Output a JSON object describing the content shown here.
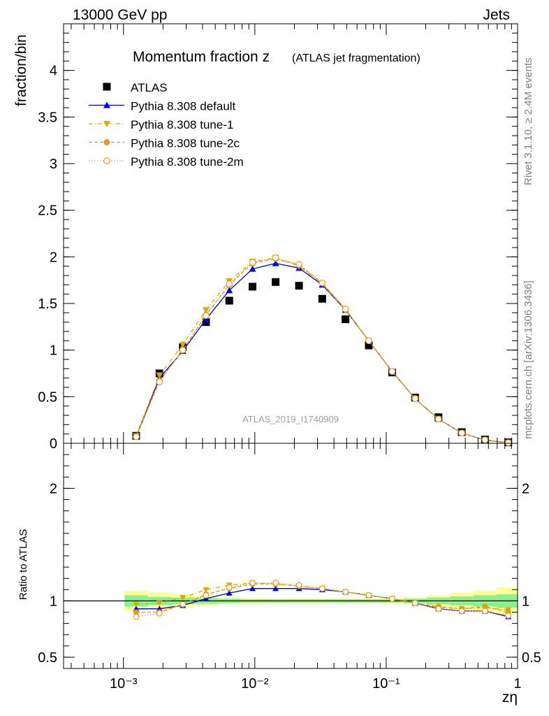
{
  "header": {
    "left": "13000 GeV pp",
    "right": "Jets"
  },
  "side_labels": {
    "rivet": "Rivet 3.1.10, ≥ 2.4M events",
    "mcplots": "mcplots.cern.ch [arXiv:1306.3436]"
  },
  "chart_data": [
    {
      "type": "scatter",
      "title": "Momentum fraction z",
      "title_suffix": "(ATLAS jet fragmentation)",
      "ylabel": "fraction/bin",
      "analysis_id": "ATLAS_2019_I1740909",
      "xscale": "log",
      "xlim": [
        0.00035,
        1.0
      ],
      "ylim": [
        0,
        4.5
      ],
      "yticks": [
        0,
        0.5,
        1,
        1.5,
        2,
        2.5,
        3,
        3.5,
        4
      ],
      "ytick_labels": [
        "0",
        "0.5",
        "1",
        "1.5",
        "2",
        "2.5",
        "3",
        "3.5",
        "4"
      ],
      "legend_position": "top-left",
      "x": [
        0.00125,
        0.00188,
        0.00283,
        0.00425,
        0.00639,
        0.0096,
        0.0144,
        0.0217,
        0.0326,
        0.049,
        0.0737,
        0.111,
        0.166,
        0.25,
        0.376,
        0.565,
        0.85
      ],
      "series": [
        {
          "name": "ATLAS",
          "color": "#000000",
          "marker": "square",
          "values": [
            0.08,
            0.75,
            1.03,
            1.3,
            1.53,
            1.68,
            1.73,
            1.69,
            1.55,
            1.33,
            1.05,
            0.76,
            0.49,
            0.28,
            0.12,
            0.04,
            0.01
          ]
        },
        {
          "name": "Pythia 8.308 default",
          "color": "#0000dd",
          "marker": "triangle-up",
          "line": "solid",
          "values": [
            0.07,
            0.7,
            0.99,
            1.33,
            1.64,
            1.87,
            1.93,
            1.88,
            1.7,
            1.43,
            1.1,
            0.77,
            0.48,
            0.26,
            0.11,
            0.035,
            0.006
          ]
        },
        {
          "name": "Pythia 8.308 tune-1",
          "color": "#ddaa00",
          "marker": "triangle-down",
          "line": "dashdot",
          "values": [
            0.08,
            0.73,
            1.06,
            1.43,
            1.74,
            1.95,
            1.99,
            1.9,
            1.71,
            1.43,
            1.1,
            0.77,
            0.48,
            0.26,
            0.11,
            0.037,
            0.008
          ]
        },
        {
          "name": "Pythia 8.308 tune-2c",
          "color": "#e49a1c",
          "marker": "circle",
          "line": "dashed",
          "values": [
            0.07,
            0.67,
            1.0,
            1.38,
            1.7,
            1.93,
            1.98,
            1.91,
            1.72,
            1.44,
            1.1,
            0.77,
            0.48,
            0.26,
            0.11,
            0.036,
            0.007
          ]
        },
        {
          "name": "Pythia 8.308 tune-2m",
          "color": "#e49a1c",
          "marker": "circle-open",
          "line": "dotted",
          "values": [
            0.07,
            0.66,
            1.0,
            1.37,
            1.71,
            1.94,
            1.99,
            1.92,
            1.72,
            1.44,
            1.1,
            0.77,
            0.48,
            0.26,
            0.11,
            0.036,
            0.006
          ]
        }
      ]
    },
    {
      "type": "scatter",
      "ylabel": "Ratio to ATLAS",
      "xlabel": "zη",
      "xscale": "log",
      "xlim": [
        0.00035,
        1.0
      ],
      "ylim": [
        0.4,
        2.4
      ],
      "yticks": [
        0.5,
        1,
        2
      ],
      "ytick_labels": [
        "0.5",
        "1",
        "2"
      ],
      "xtick_labels": [
        "10⁻³",
        "10⁻²",
        "10⁻¹",
        "1"
      ],
      "x": [
        0.00125,
        0.00188,
        0.00283,
        0.00425,
        0.00639,
        0.0096,
        0.0144,
        0.0217,
        0.0326,
        0.049,
        0.0737,
        0.111,
        0.166,
        0.25,
        0.376,
        0.565,
        0.85
      ],
      "bands": {
        "inner": {
          "color": "#90ee90",
          "half_widths": [
            0.05,
            0.035,
            0.03,
            0.025,
            0.02,
            0.015,
            0.015,
            0.015,
            0.015,
            0.015,
            0.015,
            0.015,
            0.02,
            0.03,
            0.04,
            0.05,
            0.06
          ]
        },
        "outer": {
          "color": "#ffff99",
          "half_widths": [
            0.09,
            0.075,
            0.06,
            0.04,
            0.03,
            0.025,
            0.02,
            0.02,
            0.02,
            0.02,
            0.02,
            0.025,
            0.03,
            0.05,
            0.07,
            0.09,
            0.12
          ]
        }
      },
      "series": [
        {
          "name": "Pythia 8.308 default",
          "color": "#0000dd",
          "marker": "triangle-up",
          "line": "solid",
          "values": [
            0.93,
            0.93,
            0.96,
            1.02,
            1.07,
            1.11,
            1.11,
            1.11,
            1.1,
            1.08,
            1.05,
            1.02,
            0.98,
            0.93,
            0.91,
            0.91,
            0.86
          ]
        },
        {
          "name": "Pythia 8.308 tune-1",
          "color": "#ddaa00",
          "marker": "triangle-down",
          "line": "dashdot",
          "values": [
            0.97,
            0.98,
            1.03,
            1.1,
            1.14,
            1.16,
            1.15,
            1.13,
            1.11,
            1.08,
            1.05,
            1.02,
            0.98,
            0.94,
            0.93,
            0.94,
            0.92
          ]
        },
        {
          "name": "Pythia 8.308 tune-2c",
          "color": "#e49a1c",
          "marker": "circle",
          "line": "dashed",
          "values": [
            0.9,
            0.9,
            0.97,
            1.06,
            1.11,
            1.15,
            1.15,
            1.13,
            1.11,
            1.08,
            1.05,
            1.02,
            0.98,
            0.95,
            0.93,
            0.95,
            0.9
          ]
        },
        {
          "name": "Pythia 8.308 tune-2m",
          "color": "#e49a1c",
          "marker": "circle-open",
          "line": "dotted",
          "values": [
            0.86,
            0.89,
            0.97,
            1.05,
            1.12,
            1.16,
            1.16,
            1.14,
            1.11,
            1.08,
            1.05,
            1.02,
            0.98,
            0.93,
            0.91,
            0.91,
            0.87
          ]
        }
      ]
    }
  ]
}
